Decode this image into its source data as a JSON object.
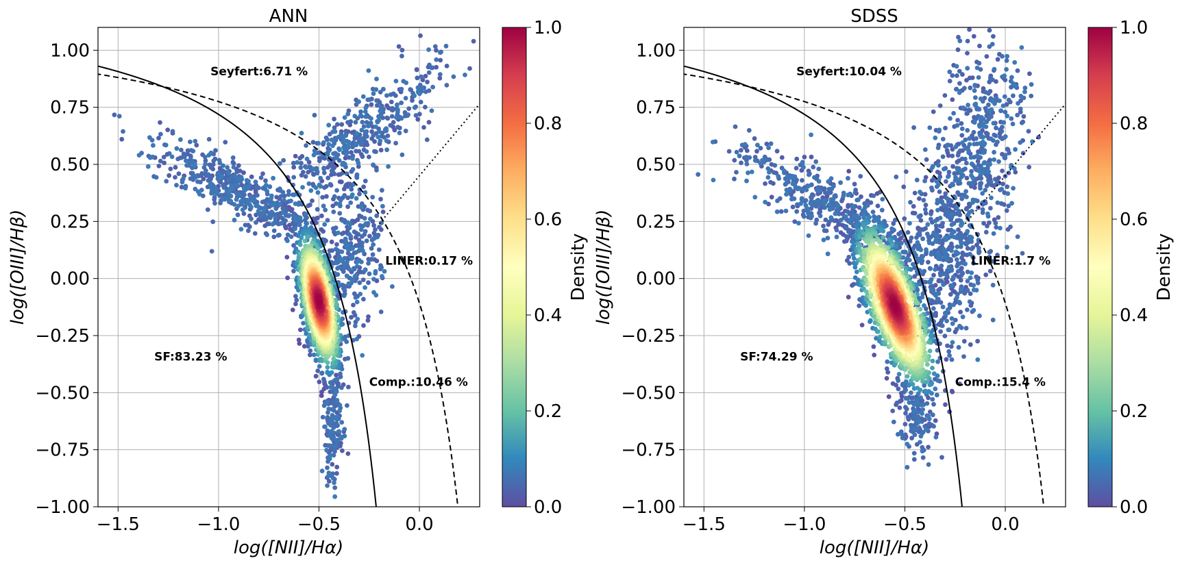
{
  "chart_data": [
    {
      "type": "scatter",
      "title": "ANN",
      "xlabel": "log([NII]/Hα)",
      "ylabel": "log([OIII]/Hβ)",
      "xlim": [
        -1.6,
        0.3
      ],
      "ylim": [
        -1.0,
        1.1
      ],
      "x_ticks": [
        "−1.5",
        "−1.0",
        "−0.5",
        "0.0"
      ],
      "y_ticks": [
        "1.00",
        "0.75",
        "0.50",
        "0.25",
        "0.00",
        "−0.25",
        "−0.50",
        "−0.75",
        "−1.00"
      ],
      "grid": true,
      "colorbar": {
        "label": "Density",
        "range": [
          0,
          1
        ],
        "ticks": [
          "0.0",
          "0.2",
          "0.4",
          "0.6",
          "0.8",
          "1.0"
        ],
        "colormap": "Spectral_r"
      },
      "annotations": [
        {
          "text": "Seyfert:6.71 %",
          "x": -1.04,
          "y": 0.89
        },
        {
          "text": "LINER:0.17 %",
          "x": -0.17,
          "y": 0.06
        },
        {
          "text": "SF:83.23 %",
          "x": -1.32,
          "y": -0.36
        },
        {
          "text": "Comp.:10.46 %",
          "x": -0.25,
          "y": -0.47
        }
      ],
      "clusters": [
        {
          "name": "sf_branch",
          "n": 1500,
          "x": -0.5,
          "y": -0.1,
          "sx": 0.05,
          "sy": 0.14,
          "rho": -0.55,
          "dense": true
        },
        {
          "name": "sf_wing",
          "n": 500,
          "x": -0.9,
          "y": 0.38,
          "sx": 0.22,
          "sy": 0.11,
          "rho": -0.85,
          "dense": false
        },
        {
          "name": "agn_plume",
          "n": 450,
          "x": -0.3,
          "y": 0.62,
          "sx": 0.22,
          "sy": 0.17,
          "rho": 0.85,
          "dense": false
        },
        {
          "name": "comp_region",
          "n": 300,
          "x": -0.35,
          "y": 0.1,
          "sx": 0.08,
          "sy": 0.18,
          "rho": 0.1,
          "dense": false
        },
        {
          "name": "tail",
          "n": 150,
          "x": -0.43,
          "y": -0.65,
          "sx": 0.025,
          "sy": 0.12,
          "rho": 0.0,
          "dense": false
        }
      ]
    },
    {
      "type": "scatter",
      "title": "SDSS",
      "xlabel": "log([NII]/Hα)",
      "ylabel": "log([OIII]/Hβ)",
      "xlim": [
        -1.6,
        0.3
      ],
      "ylim": [
        -1.0,
        1.1
      ],
      "x_ticks": [
        "−1.5",
        "−1.0",
        "−0.5",
        "0.0"
      ],
      "y_ticks": [
        "1.00",
        "0.75",
        "0.50",
        "0.25",
        "0.00",
        "−0.25",
        "−0.50",
        "−0.75",
        "−1.00"
      ],
      "grid": true,
      "colorbar": {
        "label": "Density",
        "range": [
          0,
          1
        ],
        "ticks": [
          "0.0",
          "0.2",
          "0.4",
          "0.6",
          "0.8",
          "1.0"
        ],
        "colormap": "Spectral_r"
      },
      "annotations": [
        {
          "text": "Seyfert:10.04 %",
          "x": -1.04,
          "y": 0.89
        },
        {
          "text": "LINER:1.7 %",
          "x": -0.17,
          "y": 0.06
        },
        {
          "text": "SF:74.29 %",
          "x": -1.32,
          "y": -0.36
        },
        {
          "text": "Comp.:15.4 %",
          "x": -0.25,
          "y": -0.47
        }
      ],
      "clusters": [
        {
          "name": "sf_branch",
          "n": 1700,
          "x": -0.55,
          "y": -0.12,
          "sx": 0.09,
          "sy": 0.17,
          "rho": -0.7,
          "dense": true
        },
        {
          "name": "sf_wing",
          "n": 500,
          "x": -0.85,
          "y": 0.3,
          "sx": 0.22,
          "sy": 0.13,
          "rho": -0.85,
          "dense": false
        },
        {
          "name": "agn_plume",
          "n": 550,
          "x": -0.15,
          "y": 0.55,
          "sx": 0.13,
          "sy": 0.25,
          "rho": 0.45,
          "dense": false
        },
        {
          "name": "comp_region",
          "n": 450,
          "x": -0.3,
          "y": 0.05,
          "sx": 0.12,
          "sy": 0.2,
          "rho": 0.15,
          "dense": false
        },
        {
          "name": "tail",
          "n": 120,
          "x": -0.45,
          "y": -0.62,
          "sx": 0.05,
          "sy": 0.08,
          "rho": 0.0,
          "dense": false
        }
      ]
    }
  ],
  "colors": {
    "spectral": [
      "#5e4fa2",
      "#3288bd",
      "#66c2a5",
      "#abdda4",
      "#e6f598",
      "#ffffbf",
      "#fee08b",
      "#fdae61",
      "#f46d43",
      "#d53e4f",
      "#9e0142"
    ],
    "grid": "#b0b0b0",
    "curve": "#000000"
  }
}
